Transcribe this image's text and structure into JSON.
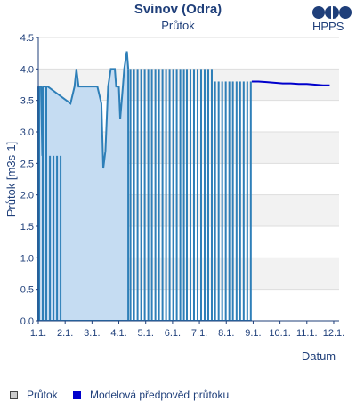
{
  "header": {
    "title": "Svinov (Odra)",
    "subtitle": "Průtok",
    "brand": "HPPS"
  },
  "legend": {
    "items": [
      {
        "label": "Průtok",
        "color": "#cccccc"
      },
      {
        "label": "Modelová předpověď průtoku",
        "color": "#0000cc"
      }
    ]
  },
  "chart_data": {
    "type": "area",
    "title": "Svinov (Odra)",
    "subtitle": "Průtok",
    "xlabel": "Datum",
    "ylabel": "Průtok [m3s-1]",
    "ylim": [
      0,
      4.5
    ],
    "yticks": [
      "0.0",
      "0.5",
      "1.0",
      "1.5",
      "2.0",
      "2.5",
      "3.0",
      "3.5",
      "4.0",
      "4.5"
    ],
    "xlim": [
      0,
      11.2
    ],
    "xticks": [
      "1.1.",
      "2.1.",
      "3.1.",
      "4.1.",
      "5.1.",
      "6.1.",
      "7.1.",
      "8.1.",
      "9.1.",
      "10.1.",
      "11.1.",
      "12.1."
    ],
    "grid": true,
    "legend_position": "bottom",
    "series": [
      {
        "name": "Průtok",
        "color": "#2e7fb8",
        "fill": "#c5dcf2",
        "points": [
          [
            0.0,
            3.72
          ],
          [
            0.1,
            3.72
          ],
          [
            0.15,
            2.62
          ],
          [
            0.2,
            3.72
          ],
          [
            0.35,
            3.72
          ],
          [
            1.2,
            3.45
          ],
          [
            1.35,
            3.72
          ],
          [
            1.42,
            4.0
          ],
          [
            1.5,
            3.72
          ],
          [
            2.2,
            3.72
          ],
          [
            2.35,
            3.45
          ],
          [
            2.42,
            2.42
          ],
          [
            2.5,
            2.7
          ],
          [
            2.6,
            3.72
          ],
          [
            2.7,
            4.0
          ],
          [
            2.85,
            4.0
          ],
          [
            2.9,
            3.72
          ],
          [
            3.0,
            3.72
          ],
          [
            3.05,
            3.2
          ],
          [
            3.15,
            3.72
          ],
          [
            3.2,
            4.0
          ],
          [
            3.3,
            4.28
          ],
          [
            3.35,
            4.0
          ]
        ]
      },
      {
        "name": "Průtok",
        "color": "#2e7fb8",
        "bars": [
          {
            "from": 0.0,
            "to": 0.33,
            "value": 3.72
          },
          {
            "from": 0.4,
            "to": 0.85,
            "value": 2.62
          },
          {
            "from": 3.4,
            "to": 5.45,
            "value": 4.0
          },
          {
            "from": 5.5,
            "to": 6.45,
            "value": 4.0
          },
          {
            "from": 6.55,
            "to": 7.25,
            "value": 3.8
          },
          {
            "from": 7.35,
            "to": 7.95,
            "value": 3.8
          }
        ]
      },
      {
        "name": "Modelová předpověď průtoku",
        "color": "#0000cc",
        "points": [
          [
            7.95,
            3.8
          ],
          [
            8.2,
            3.8
          ],
          [
            8.5,
            3.79
          ],
          [
            8.8,
            3.78
          ],
          [
            9.1,
            3.77
          ],
          [
            9.4,
            3.77
          ],
          [
            9.7,
            3.76
          ],
          [
            10.0,
            3.76
          ],
          [
            10.3,
            3.75
          ],
          [
            10.6,
            3.74
          ],
          [
            10.85,
            3.74
          ]
        ]
      }
    ]
  }
}
